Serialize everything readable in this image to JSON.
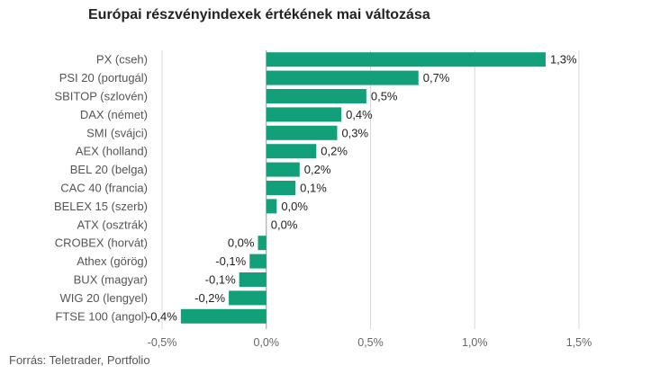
{
  "chart_data": {
    "type": "bar",
    "orientation": "horizontal",
    "title": "Európai részvényindexek értékének mai változása",
    "xlabel": "",
    "ylabel": "",
    "xlim": [
      -0.5,
      1.5
    ],
    "xticks": [
      -0.5,
      0.0,
      0.5,
      1.0,
      1.5
    ],
    "xtick_labels": [
      "-0,5%",
      "0,0%",
      "0,5%",
      "1,0%",
      "1,5%"
    ],
    "grid": "vertical",
    "legend": "none",
    "color": "#11a07a",
    "categories": [
      "PX (cseh)",
      "PSI 20 (portugál)",
      "SBITOP (szlovén)",
      "DAX (német)",
      "SMI (svájci)",
      "AEX (holland)",
      "BEL 20 (belga)",
      "CAC 40 (francia)",
      "BELEX 15 (szerb)",
      "ATX (osztrák)",
      "CROBEX (horvát)",
      "Athex (görög)",
      "BUX (magyar)",
      "WIG 20 (lengyel)",
      "FTSE 100 (angol)"
    ],
    "values": [
      1.34,
      0.73,
      0.48,
      0.36,
      0.34,
      0.24,
      0.16,
      0.14,
      0.05,
      0.0,
      -0.04,
      -0.08,
      -0.13,
      -0.18,
      -0.41
    ],
    "value_labels": [
      "1,3%",
      "0,7%",
      "0,5%",
      "0,4%",
      "0,3%",
      "0,2%",
      "0,2%",
      "0,1%",
      "0,0%",
      "0,0%",
      "0,0%",
      "-0,1%",
      "-0,1%",
      "-0,2%",
      "-0,4%"
    ]
  },
  "source": "Forrás: Teletrader, Portfolio"
}
